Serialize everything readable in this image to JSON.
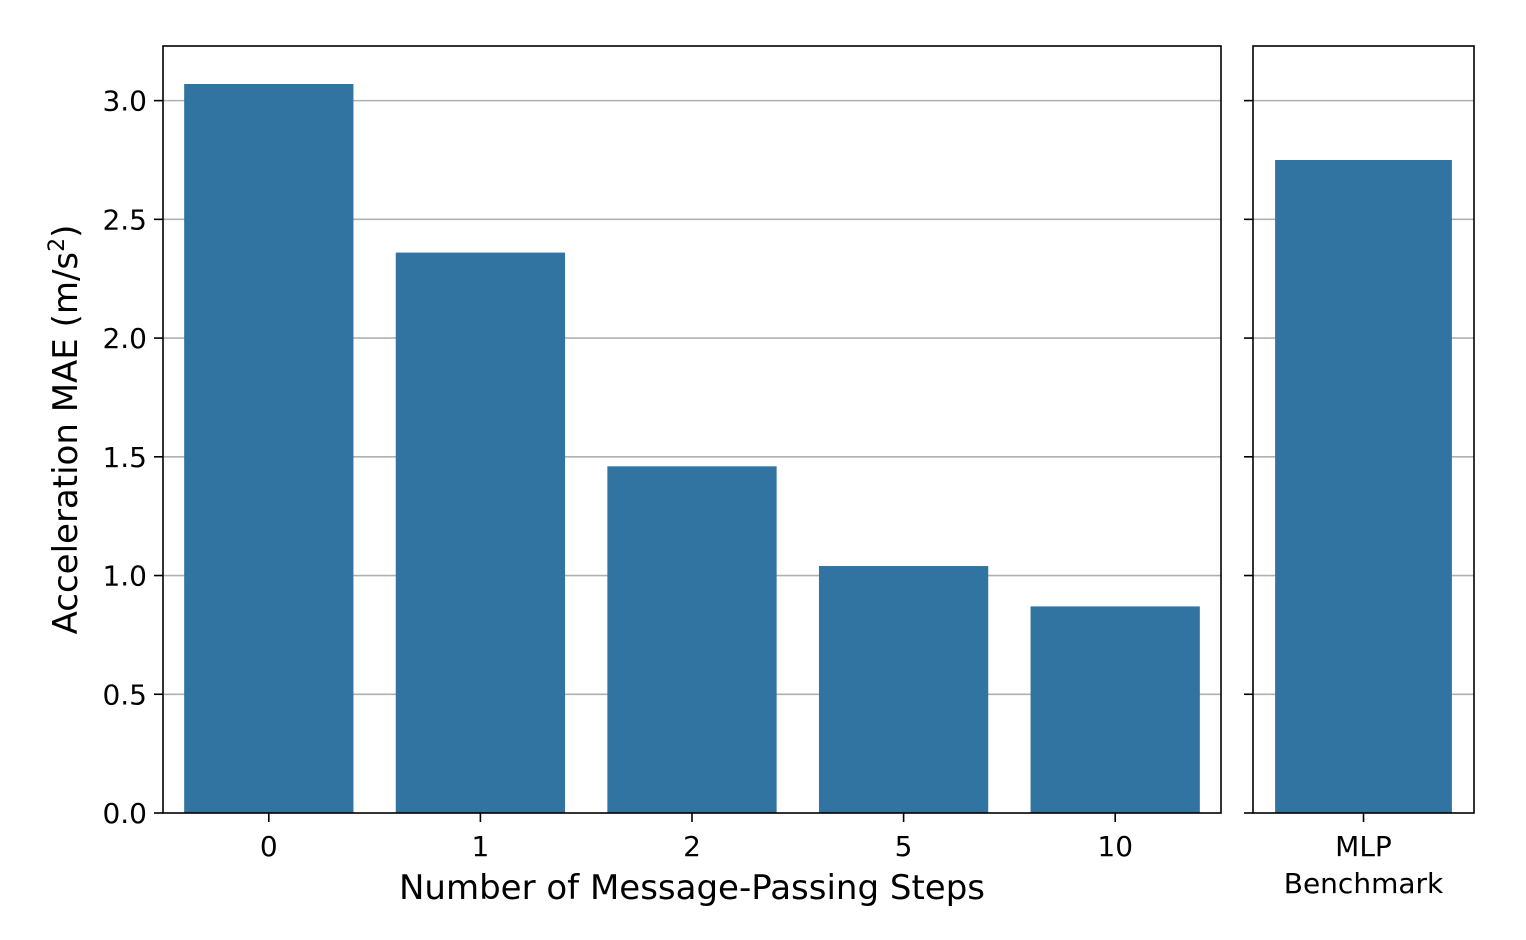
{
  "chart_data": [
    {
      "type": "bar",
      "xlabel": "Number of Message-Passing Steps",
      "ylabel": "Acceleration MAE (m/s²)",
      "ylabel_main": "Acceleration MAE (m/s",
      "ylabel_sup": "2",
      "ylabel_close": ")",
      "categories": [
        "0",
        "1",
        "2",
        "5",
        "10"
      ],
      "values": [
        3.07,
        2.36,
        1.46,
        1.04,
        0.87
      ],
      "yticks": [
        "0.0",
        "0.5",
        "1.0",
        "1.5",
        "2.0",
        "2.5",
        "3.0"
      ],
      "ylim": [
        0,
        3.23
      ],
      "grid": "horizontal",
      "bar_color": "#3274a1"
    },
    {
      "type": "bar",
      "categories": [
        "MLP\nBenchmark"
      ],
      "category_lines": [
        "MLP",
        "Benchmark"
      ],
      "values": [
        2.75
      ],
      "ylim": [
        0,
        3.23
      ],
      "grid": "horizontal",
      "shared_y": true,
      "bar_color": "#3274a1"
    }
  ]
}
